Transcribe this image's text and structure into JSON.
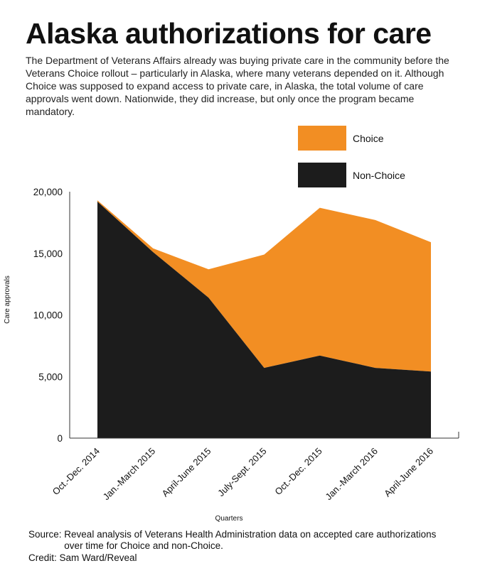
{
  "title": "Alaska authorizations for care",
  "subtitle": "The Department of Veterans Affairs already was buying private care in the community before the Veterans Choice rollout – particularly in Alaska, where many veterans depended on it. Although Choice was supposed to expand access to private care, in Alaska, the total volume of care approvals went down. Nationwide, they did increase, but only once the program became mandatory.",
  "source_label": "Source:",
  "source_text": "Reveal analysis of Veterans Health Administration data on accepted care authorizations over time for Choice and non-Choice.",
  "credit": "Credit: Sam Ward/Reveal",
  "colors": {
    "choice": "#f28e23",
    "non_choice": "#1c1c1c"
  },
  "chart_data": {
    "type": "area",
    "stacked": true,
    "title": "Alaska authorizations for care",
    "xlabel": "Quarters",
    "ylabel": "Care approvals",
    "categories": [
      "Oct.-Dec. 2014",
      "Jan.-March 2015",
      "April-June 2015",
      "July-Sept. 2015",
      "Oct.-Dec. 2015",
      "Jan.-March 2016",
      "April-June 2016"
    ],
    "series": [
      {
        "name": "Non-Choice",
        "color": "#1c1c1c",
        "values": [
          19200,
          15100,
          11400,
          5700,
          6700,
          5700,
          5400
        ]
      },
      {
        "name": "Choice",
        "color": "#f28e23",
        "values": [
          100,
          300,
          2300,
          9200,
          12000,
          12000,
          10500
        ]
      }
    ],
    "ylim": [
      0,
      20000
    ],
    "yticks": [
      0,
      5000,
      10000,
      15000,
      20000
    ],
    "ytick_labels": [
      "0",
      "5,000",
      "10,000",
      "15,000",
      "20,000"
    ],
    "legend": {
      "placement": "top-right",
      "entries": [
        "Choice",
        "Non-Choice"
      ]
    },
    "grid": false
  }
}
